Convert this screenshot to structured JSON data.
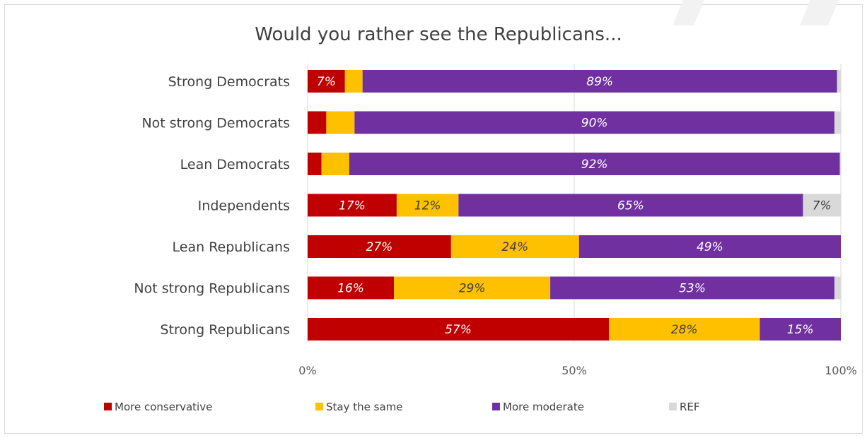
{
  "chart_data": {
    "type": "bar",
    "orientation": "horizontal",
    "stacked": true,
    "title": "Would you rather see the Republicans...",
    "categories": [
      "Strong Democrats",
      "Not strong Democrats",
      "Lean Democrats",
      "Independents",
      "Lean Republicans",
      "Not strong Republicans",
      "Strong Republicans"
    ],
    "series": [
      {
        "name": "More conservative",
        "color": "#c00000",
        "values": [
          7,
          3.5,
          2.6,
          16.7,
          26.9,
          16.2,
          56.5
        ],
        "labels": [
          "7%",
          "",
          "",
          "17%",
          "27%",
          "16%",
          "57%"
        ]
      },
      {
        "name": "Stay the same",
        "color": "#ffc000",
        "values": [
          3.3,
          5.3,
          5.2,
          11.6,
          24,
          29.3,
          28.3
        ],
        "labels": [
          "",
          "",
          "",
          "12%",
          "24%",
          "29%",
          "28%"
        ]
      },
      {
        "name": "More moderate",
        "color": "#7030a0",
        "values": [
          89,
          90,
          92,
          64.6,
          49.1,
          53.3,
          15.2
        ],
        "labels": [
          "89%",
          "90%",
          "92%",
          "65%",
          "49%",
          "53%",
          "15%"
        ]
      },
      {
        "name": "REF",
        "color": "#d9d9d9",
        "values": [
          0.7,
          1.2,
          0.2,
          7.1,
          0,
          1.2,
          0
        ],
        "labels": [
          "",
          "",
          "",
          "7%",
          "",
          "",
          ""
        ]
      }
    ],
    "xlim": [
      0,
      100
    ],
    "xticks": [
      "0%",
      "50%",
      "100%"
    ],
    "grid": true,
    "legend_position": "bottom"
  }
}
